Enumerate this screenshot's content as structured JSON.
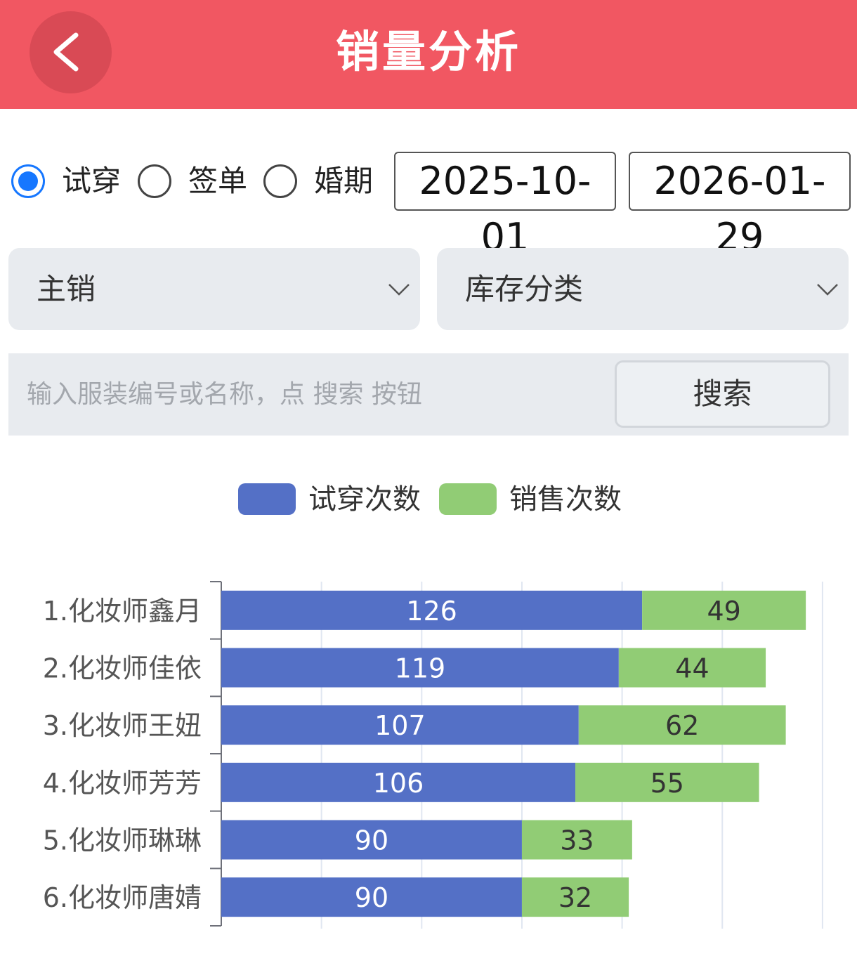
{
  "header": {
    "title": "销量分析",
    "back_icon": "chevron-left-icon",
    "background": "#f15762"
  },
  "filters": {
    "radios": [
      {
        "label": "试穿",
        "checked": true
      },
      {
        "label": "签单",
        "checked": false
      },
      {
        "label": "婚期",
        "checked": false
      }
    ],
    "start_date": "2025-10-01",
    "end_date": "2026-01-29",
    "select_primary": "主销",
    "select_category": "库存分类"
  },
  "search": {
    "placeholder": "输入服装编号或名称，点 搜索 按钮",
    "button_label": "搜索"
  },
  "chart_data": {
    "type": "bar",
    "orientation": "horizontal",
    "stacked": true,
    "categories": [
      "1.化妆师鑫月",
      "2.化妆师佳依",
      "3.化妆师王妞",
      "4.化妆师芳芳",
      "5.化妆师琳琳",
      "6.化妆师唐婧"
    ],
    "series": [
      {
        "name": "试穿次数",
        "color": "#5470c6",
        "values": [
          126,
          119,
          107,
          106,
          90,
          90
        ]
      },
      {
        "name": "销售次数",
        "color": "#91cc75",
        "values": [
          49,
          44,
          62,
          55,
          33,
          32
        ]
      }
    ],
    "xlim": [
      0,
      180
    ],
    "grid": true,
    "legend_position": "top-center"
  }
}
